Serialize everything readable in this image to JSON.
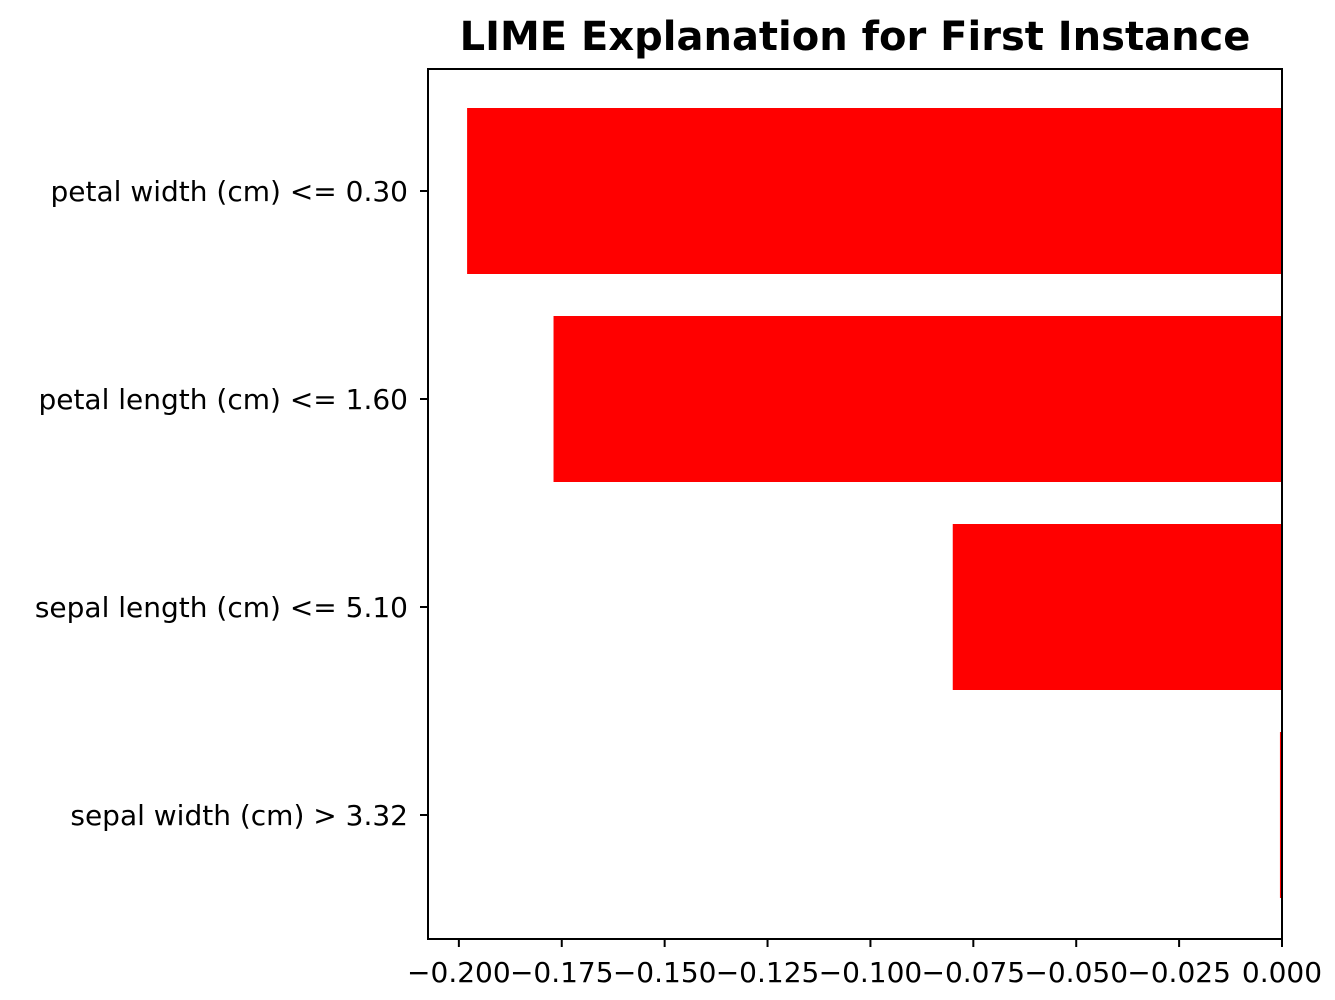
{
  "chart_data": {
    "type": "bar",
    "orientation": "horizontal",
    "title": "LIME Explanation for First Instance",
    "xlabel": "",
    "ylabel": "",
    "categories": [
      "petal width (cm) <= 0.30",
      "petal length (cm) <= 1.60",
      "sepal length (cm) <= 5.10",
      "sepal width (cm) > 3.32"
    ],
    "values": [
      -0.198,
      -0.177,
      -0.08,
      -0.0005
    ],
    "xlim": [
      -0.2075,
      0.0
    ],
    "xticks": [
      -0.2,
      -0.175,
      -0.15,
      -0.125,
      -0.1,
      -0.075,
      -0.05,
      -0.025,
      0.0
    ],
    "xtick_labels": [
      "−0.200",
      "−0.175",
      "−0.150",
      "−0.125",
      "−0.100",
      "−0.075",
      "−0.050",
      "−0.025",
      "0.000"
    ],
    "bar_color": "#ff0000",
    "grid": false,
    "legend": "none"
  }
}
